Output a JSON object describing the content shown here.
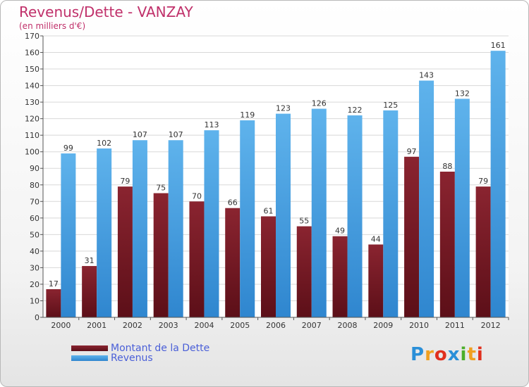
{
  "header": {
    "title": "Revenus/Dette - VANZAY",
    "subtitle": "(en milliers d'€)"
  },
  "chart_data": {
    "type": "bar",
    "categories": [
      "2000",
      "2001",
      "2002",
      "2003",
      "2004",
      "2005",
      "2006",
      "2007",
      "2008",
      "2009",
      "2010",
      "2011",
      "2012"
    ],
    "series": [
      {
        "name": "Montant de la Dette",
        "values": [
          17,
          31,
          79,
          75,
          70,
          66,
          61,
          55,
          49,
          44,
          97,
          88,
          79
        ],
        "color": "#7a1a24"
      },
      {
        "name": "Revenus",
        "values": [
          99,
          102,
          107,
          107,
          113,
          119,
          123,
          126,
          122,
          125,
          143,
          132,
          161
        ],
        "color": "#4ea8e6"
      }
    ],
    "yticks": [
      0,
      10,
      20,
      30,
      40,
      50,
      60,
      70,
      80,
      90,
      100,
      110,
      120,
      130,
      140,
      150,
      160,
      170
    ],
    "ylim": [
      0,
      170
    ],
    "grid": true,
    "legend": "bottom-left"
  },
  "logo": {
    "letters": [
      "P",
      "r",
      "o",
      "x",
      "i",
      "t",
      "i"
    ],
    "colors": [
      "#2a8fd8",
      "#f0a020",
      "#e0301e",
      "#2a8fd8",
      "#4cae2a",
      "#f0a020",
      "#e0301e"
    ]
  }
}
